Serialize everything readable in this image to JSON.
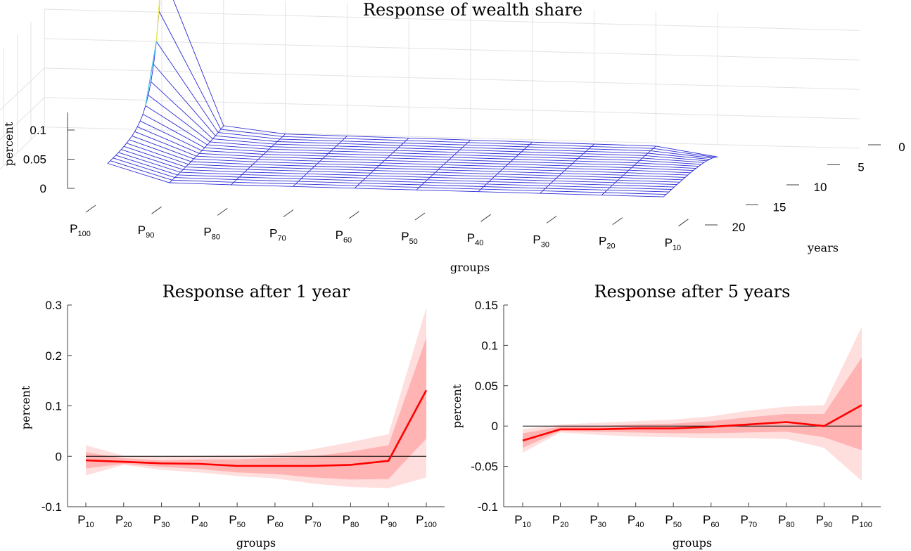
{
  "chart_data": [
    {
      "type": "surface",
      "title": "Response of wealth share",
      "xlabel": "groups",
      "ylabel": "years",
      "zlabel": "percent",
      "x_tick_labels": [
        {
          "base": "P",
          "sub": "100"
        },
        {
          "base": "P",
          "sub": "90"
        },
        {
          "base": "P",
          "sub": "80"
        },
        {
          "base": "P",
          "sub": "70"
        },
        {
          "base": "P",
          "sub": "60"
        },
        {
          "base": "P",
          "sub": "50"
        },
        {
          "base": "P",
          "sub": "40"
        },
        {
          "base": "P",
          "sub": "30"
        },
        {
          "base": "P",
          "sub": "20"
        },
        {
          "base": "P",
          "sub": "10"
        }
      ],
      "y_ticks": [
        0,
        5,
        10,
        15,
        20
      ],
      "z_ticks": [
        0,
        0.05,
        0.1
      ],
      "z_tick_labels": [
        "0",
        "0.05",
        "0.1"
      ],
      "peak_value": 0.27,
      "peak_group": "P100",
      "peak_year": 0
    },
    {
      "type": "line",
      "title": "Response after 1 year",
      "xlabel": "groups",
      "ylabel": "percent",
      "categories": [
        {
          "base": "P",
          "sub": "10"
        },
        {
          "base": "P",
          "sub": "20"
        },
        {
          "base": "P",
          "sub": "30"
        },
        {
          "base": "P",
          "sub": "40"
        },
        {
          "base": "P",
          "sub": "50"
        },
        {
          "base": "P",
          "sub": "60"
        },
        {
          "base": "P",
          "sub": "70"
        },
        {
          "base": "P",
          "sub": "80"
        },
        {
          "base": "P",
          "sub": "90"
        },
        {
          "base": "P",
          "sub": "100"
        }
      ],
      "values": [
        -0.008,
        -0.011,
        -0.014,
        -0.015,
        -0.019,
        -0.019,
        -0.019,
        -0.017,
        -0.009,
        0.131
      ],
      "band_inner_upper": [
        0.008,
        -0.004,
        -0.008,
        -0.006,
        -0.006,
        -0.003,
        0.0,
        0.009,
        0.022,
        0.235
      ],
      "band_inner_lower": [
        -0.024,
        -0.015,
        -0.021,
        -0.025,
        -0.032,
        -0.035,
        -0.042,
        -0.046,
        -0.045,
        0.035
      ],
      "band_outer_upper": [
        0.022,
        0.001,
        -0.001,
        0.001,
        0.002,
        0.004,
        0.014,
        0.028,
        0.044,
        0.295
      ],
      "band_outer_lower": [
        -0.038,
        -0.017,
        -0.027,
        -0.032,
        -0.039,
        -0.044,
        -0.054,
        -0.061,
        -0.063,
        -0.042
      ],
      "ylim": [
        -0.1,
        0.3
      ],
      "yticks": [
        -0.1,
        0,
        0.1,
        0.2,
        0.3
      ],
      "ytick_labels": [
        "-0.1",
        "0",
        "0.1",
        "0.2",
        "0.3"
      ],
      "zero_line": 0
    },
    {
      "type": "line",
      "title": "Response after 5 years",
      "xlabel": "groups",
      "ylabel": "percent",
      "categories": [
        {
          "base": "P",
          "sub": "10"
        },
        {
          "base": "P",
          "sub": "20"
        },
        {
          "base": "P",
          "sub": "30"
        },
        {
          "base": "P",
          "sub": "40"
        },
        {
          "base": "P",
          "sub": "50"
        },
        {
          "base": "P",
          "sub": "60"
        },
        {
          "base": "P",
          "sub": "70"
        },
        {
          "base": "P",
          "sub": "80"
        },
        {
          "base": "P",
          "sub": "90"
        },
        {
          "base": "P",
          "sub": "100"
        }
      ],
      "values": [
        -0.018,
        -0.004,
        -0.004,
        -0.003,
        -0.003,
        -0.001,
        0.002,
        0.005,
        0.0,
        0.026
      ],
      "band_inner_upper": [
        -0.009,
        -0.001,
        0.0,
        0.002,
        0.003,
        0.006,
        0.011,
        0.015,
        0.015,
        0.085
      ],
      "band_inner_lower": [
        -0.027,
        -0.006,
        -0.007,
        -0.008,
        -0.009,
        -0.009,
        -0.008,
        -0.007,
        -0.014,
        -0.03
      ],
      "band_outer_upper": [
        -0.004,
        0.002,
        0.004,
        0.006,
        0.008,
        0.012,
        0.019,
        0.024,
        0.026,
        0.123
      ],
      "band_outer_lower": [
        -0.033,
        -0.008,
        -0.011,
        -0.013,
        -0.014,
        -0.015,
        -0.015,
        -0.016,
        -0.027,
        -0.068
      ],
      "ylim": [
        -0.1,
        0.15
      ],
      "yticks": [
        -0.1,
        -0.05,
        0,
        0.05,
        0.1,
        0.15
      ],
      "ytick_labels": [
        "-0.1",
        "-0.05",
        "0",
        "0.05",
        "0.1",
        "0.15"
      ],
      "zero_line": 0
    }
  ],
  "colors": {
    "line": "#ff0000",
    "band_outer": "#ffdede",
    "band_inner": "#ffb3b3",
    "mesh": "#2b2bd6",
    "peak_high": "#e8e85a",
    "peak_mid": "#3fc6e6",
    "zero_line": "#000000"
  }
}
